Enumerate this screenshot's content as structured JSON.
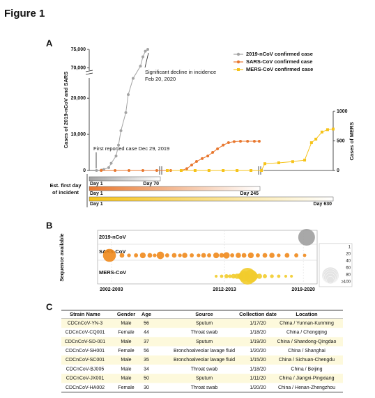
{
  "title": "Figure 1",
  "chart_data": [
    {
      "type": "line",
      "panel": "A",
      "y_label": "Cases of 2019-nCoV and SARS",
      "y2_label": "Cases of MERS",
      "xlim": [
        0,
        100
      ],
      "ylim": [
        0,
        75000
      ],
      "ybreak": [
        26000,
        69000
      ],
      "yticks": [
        0,
        {
          "value": 10000,
          "label": "10,000"
        },
        {
          "value": 20000,
          "label": "20,000"
        },
        {
          "value": 70000,
          "label": "70,000"
        },
        {
          "value": 75000,
          "label": "75,000"
        }
      ],
      "y2lim": [
        0,
        1000
      ],
      "y2ticks": [
        0,
        500,
        1000
      ],
      "legend": "upper right",
      "annotations": [
        "Significant decline in incidence",
        "Feb 20, 2020",
        "First reported case Dec 29, 2019"
      ],
      "series": [
        {
          "name": "2019-nCoV confirmed case",
          "color": "#a3a3a3",
          "marker": "circle",
          "x": [
            3,
            5,
            6,
            8,
            9,
            11,
            12,
            13,
            15,
            16,
            18,
            21,
            22,
            23,
            24
          ],
          "values": [
            0,
            100,
            300,
            800,
            2000,
            4000,
            7000,
            11000,
            16000,
            21000,
            25500,
            70500,
            73000,
            74500,
            75000
          ]
        },
        {
          "name": "SARS-CoV confirmed case",
          "color": "#e8772e",
          "marker": "circle",
          "x": [
            4.9,
            10.6,
            16.3,
            22,
            27.7,
            33.4,
            37.7,
            40,
            42,
            44,
            46.3,
            48.6,
            50.6,
            52.6,
            54.9,
            57.1,
            59.4,
            62,
            64.9,
            67.7,
            69.7
          ],
          "values": [
            0,
            0,
            0,
            0,
            0,
            0,
            0,
            500,
            1500,
            2500,
            3300,
            4000,
            5000,
            6000,
            7000,
            7700,
            8000,
            8100,
            8100,
            8100,
            8100
          ]
        },
        {
          "name": "MERS-CoV confirmed case",
          "color": "#f6c31a",
          "marker": "square",
          "axis": "y2",
          "x": [
            32,
            37.7,
            43.4,
            49.1,
            54.9,
            60.6,
            66.3,
            70.6,
            72,
            77.7,
            83.4,
            88.3,
            91.1,
            92.9,
            95.4,
            97.7,
            100
          ],
          "values": [
            0,
            0,
            0,
            0,
            0,
            0,
            0,
            0,
            115,
            130,
            150,
            175,
            470,
            530,
            650,
            690,
            700
          ]
        }
      ],
      "timeline": {
        "label": [
          "Est. first day",
          "of incident"
        ],
        "bars": [
          {
            "start": "Day 1",
            "end": "Day 70",
            "color": "#a3a3a3"
          },
          {
            "start": "Day 1",
            "end": "Day 245",
            "color": "#e8772e"
          },
          {
            "start": "Day 1",
            "end": "Day 630",
            "color": "#f6c31a"
          }
        ]
      }
    },
    {
      "type": "bubble",
      "panel": "B",
      "y_label": "Sequence available",
      "categories": [
        "2019-nCoV",
        "SARS-CoV",
        "MERS-CoV"
      ],
      "xlim": [
        0,
        100
      ],
      "xticks": [
        {
          "value": 6.3,
          "label": "2002-2003"
        },
        {
          "value": 57.8,
          "label": "2012-2013"
        },
        {
          "value": 93.7,
          "label": "2019-2020"
        }
      ],
      "size_legend": [
        1,
        20,
        40,
        60,
        80,
        {
          "value": 100,
          "label": "≥100"
        }
      ],
      "series": [
        {
          "color": "#9e9e9e",
          "x": [
            95.2
          ],
          "sizes": [
            100
          ]
        },
        {
          "color": "#f08a1c",
          "x": [
            5.4,
            11.1,
            14.3,
            17.5,
            20.6,
            23.8,
            26,
            28.6,
            31.7,
            34.9,
            37.5,
            39.7,
            42.9,
            46,
            48.3,
            50.8,
            54,
            56.5,
            58.7,
            61.3,
            64.1,
            66.7,
            69.8,
            73,
            76.2,
            79.4,
            82.5,
            86.3,
            90.5,
            94.3
          ],
          "sizes": [
            60,
            8,
            5,
            6,
            12,
            8,
            5,
            20,
            6,
            8,
            5,
            10,
            6,
            5,
            8,
            6,
            12,
            8,
            15,
            6,
            10,
            8,
            12,
            6,
            8,
            10,
            5,
            8,
            6,
            4
          ]
        },
        {
          "color": "#f2cc2c",
          "x": [
            54,
            56.5,
            58.7,
            60.3,
            61.9,
            63.5,
            65.1,
            66.7,
            68.3,
            69.8,
            71.4,
            73.7,
            76.2,
            79.4,
            82.5,
            85.7,
            88.3
          ],
          "sizes": [
            3,
            4,
            6,
            5,
            8,
            10,
            15,
            40,
            100,
            60,
            20,
            10,
            6,
            5,
            4,
            3,
            3
          ]
        }
      ]
    }
  ],
  "table": {
    "label": "C",
    "header": [
      "Strain Name",
      "Gender",
      "Age",
      "Source",
      "Collection date",
      "Location"
    ],
    "rows": [
      [
        "CDCnCoV-YN-3",
        "Male",
        56,
        "Sputum",
        "1/17/20",
        "China / Yunnan-Kunming"
      ],
      [
        "CDCnCoV-CQ001",
        "Female",
        44,
        "Throat swab",
        "1/18/20",
        "China / Chongqing"
      ],
      [
        "CDCnCoV-SD-001",
        "Male",
        37,
        "Sputum",
        "1/19/20",
        "China / Shandong-Qingdao"
      ],
      [
        "CDCnCoV-SH001",
        "Female",
        56,
        "Bronchoalveolar lavage fluid",
        "1/20/20",
        "China / Shanghai"
      ],
      [
        "CDCnCoV-SC001",
        "Male",
        35,
        "Bronchoalveolar lavage fluid",
        "1/15/20",
        "China / Sichuan-Chengdu"
      ],
      [
        "CDCnCoV-BJ005",
        "Male",
        34,
        "Throat swab",
        "1/18/20",
        "China / Beijing"
      ],
      [
        "CDCnCoV-JX001",
        "Male",
        50,
        "Sputum",
        "1/11/20",
        "China / Jiangxi-Pingxiang"
      ],
      [
        "CDCnCoV-HA002",
        "Female",
        30,
        "Throat swab",
        "1/20/20",
        "China / Henan-Zhengzhou"
      ]
    ]
  }
}
